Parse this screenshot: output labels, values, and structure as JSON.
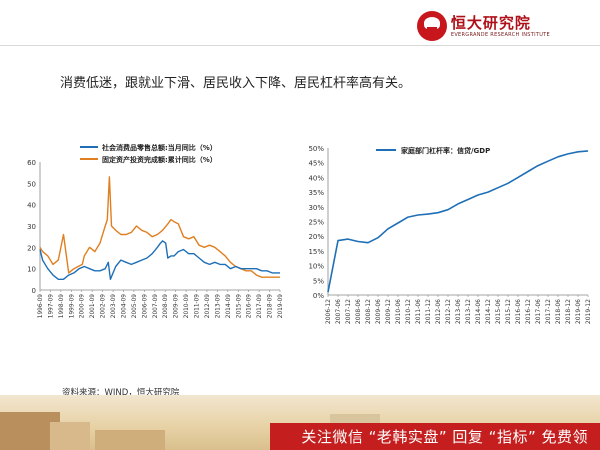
{
  "header": {
    "logo_text": "恒大研究院",
    "logo_subtext": "EVERGRANDE RESEARCH INSTITUTE"
  },
  "headline": "消费低迷，跟就业下滑、居民收入下降、居民杠杆率高有关。",
  "source": "资料来源：WIND，恒大研究院",
  "banner": {
    "text": "关注微信 “老韩实盘” 回复 “指标” 免费领"
  },
  "colors": {
    "brand": "#c8161d",
    "series_blue": "#1f6fb7",
    "series_orange": "#e07f1f"
  },
  "chart_data": [
    {
      "type": "line",
      "ylim": [
        0,
        60
      ],
      "yticks": [
        0,
        10,
        20,
        30,
        40,
        50,
        60
      ],
      "legend_position": "top",
      "categories": [
        "1996-09",
        "1997-09",
        "1998-09",
        "1999-09",
        "2000-09",
        "2001-09",
        "2002-09",
        "2003-09",
        "2004-09",
        "2005-09",
        "2006-09",
        "2007-09",
        "2008-09",
        "2009-09",
        "2010-09",
        "2011-09",
        "2012-09",
        "2013-09",
        "2014-09",
        "2015-09",
        "2016-09",
        "2017-09",
        "2018-09",
        "2019-09"
      ],
      "series": [
        {
          "name": "社会消费品零售总额:当月同比（%）",
          "color": "#1f6fb7",
          "x": [
            1996.75,
            1997.0,
            1997.5,
            1998.0,
            1998.5,
            1999.0,
            1999.5,
            2000.0,
            2000.5,
            2001.0,
            2001.5,
            2002.0,
            2002.5,
            2003.0,
            2003.3,
            2003.5,
            2004.0,
            2004.5,
            2005.0,
            2005.5,
            2006.0,
            2006.5,
            2007.0,
            2007.5,
            2008.0,
            2008.3,
            2008.5,
            2008.8,
            2009.0,
            2009.3,
            2009.6,
            2010.0,
            2010.5,
            2011.0,
            2011.5,
            2012.0,
            2012.5,
            2013.0,
            2013.5,
            2014.0,
            2014.5,
            2015.0,
            2015.5,
            2016.0,
            2016.5,
            2017.0,
            2017.5,
            2018.0,
            2018.5,
            2019.0,
            2019.5,
            2019.75
          ],
          "y": [
            19,
            14,
            10,
            7,
            5,
            5,
            7,
            8,
            10,
            11,
            10,
            9,
            9,
            10,
            13,
            5,
            11,
            14,
            13,
            12,
            13,
            14,
            15,
            17,
            20,
            22,
            23,
            22,
            15,
            16,
            16,
            18,
            19,
            17,
            17,
            15,
            13,
            12,
            13,
            12,
            12,
            10,
            11,
            10,
            10,
            10,
            10,
            9,
            9,
            8,
            8,
            8
          ]
        },
        {
          "name": "固定资产投资完成额:累计同比（%）",
          "color": "#e07f1f",
          "x": [
            1996.75,
            1997.0,
            1997.5,
            1998.0,
            1998.5,
            1999.0,
            1999.5,
            2000.0,
            2000.4,
            2000.8,
            2001.0,
            2001.5,
            2002.0,
            2002.5,
            2003.0,
            2003.2,
            2003.4,
            2003.6,
            2004.0,
            2004.5,
            2005.0,
            2005.5,
            2006.0,
            2006.5,
            2007.0,
            2007.5,
            2008.0,
            2008.5,
            2009.0,
            2009.3,
            2009.6,
            2010.0,
            2010.5,
            2011.0,
            2011.5,
            2012.0,
            2012.5,
            2013.0,
            2013.5,
            2014.0,
            2014.5,
            2015.0,
            2015.5,
            2016.0,
            2016.5,
            2017.0,
            2017.5,
            2018.0,
            2018.5,
            2019.0,
            2019.5,
            2019.75
          ],
          "y": [
            20,
            18,
            16,
            12,
            14,
            26,
            8,
            10,
            11,
            12,
            16,
            20,
            18,
            22,
            30,
            33,
            53,
            30,
            28,
            26,
            26,
            27,
            30,
            28,
            27,
            25,
            26,
            28,
            31,
            33,
            32,
            31,
            25,
            24,
            25,
            21,
            20,
            21,
            20,
            18,
            16,
            13,
            11,
            10,
            9,
            9,
            7,
            6,
            6,
            6,
            6,
            6
          ]
        }
      ]
    },
    {
      "type": "line",
      "ylim": [
        0,
        0.5
      ],
      "yticks": [
        "0%",
        "5%",
        "10%",
        "15%",
        "20%",
        "25%",
        "30%",
        "35%",
        "40%",
        "45%",
        "50%"
      ],
      "legend_position": "top",
      "categories": [
        "2006-12",
        "2007-06",
        "2007-12",
        "2008-06",
        "2008-12",
        "2009-06",
        "2009-12",
        "2010-06",
        "2010-12",
        "2011-06",
        "2011-12",
        "2012-06",
        "2012-12",
        "2013-06",
        "2013-12",
        "2014-06",
        "2014-12",
        "2015-06",
        "2015-12",
        "2016-06",
        "2016-12",
        "2017-06",
        "2017-12",
        "2018-06",
        "2018-12",
        "2019-06",
        "2019-12"
      ],
      "series": [
        {
          "name": "家庭部门杠杆率：信贷/GDP",
          "color": "#1f6fb7",
          "x": [
            0,
            1,
            2,
            3,
            4,
            5,
            6,
            7,
            8,
            9,
            10,
            11,
            12,
            13,
            14,
            15,
            16,
            17,
            18,
            19,
            20,
            21,
            22,
            23,
            24,
            25,
            26
          ],
          "y": [
            0.01,
            0.185,
            0.19,
            0.182,
            0.178,
            0.195,
            0.225,
            0.245,
            0.265,
            0.272,
            0.275,
            0.28,
            0.29,
            0.31,
            0.325,
            0.34,
            0.35,
            0.365,
            0.38,
            0.4,
            0.42,
            0.44,
            0.455,
            0.47,
            0.48,
            0.487,
            0.49
          ]
        }
      ]
    }
  ]
}
